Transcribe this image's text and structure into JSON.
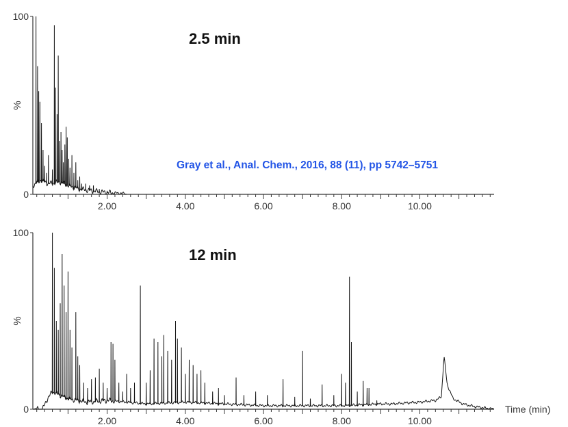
{
  "citation": {
    "text": "Gray et al., Anal. Chem., 2016, 88 (11), pp 5742–5751",
    "color": "#2355e6"
  },
  "chart_data": [
    {
      "type": "line",
      "title": "2.5 min",
      "xlabel": "",
      "ylabel": "%",
      "xlim": [
        0.1,
        11.9
      ],
      "ylim": [
        0,
        100
      ],
      "x_ticks": [
        "2.00",
        "4.00",
        "6.00",
        "8.00",
        "10.00"
      ],
      "y_ticks": [
        "0",
        "100"
      ],
      "baseline": [
        [
          0.1,
          5
        ],
        [
          0.3,
          8
        ],
        [
          0.5,
          6
        ],
        [
          0.8,
          7
        ],
        [
          1.0,
          5
        ],
        [
          1.3,
          3
        ],
        [
          1.6,
          2
        ],
        [
          2.0,
          1
        ],
        [
          2.45,
          0.5
        ],
        [
          2.5,
          0
        ]
      ],
      "peaks": [
        [
          0.18,
          100
        ],
        [
          0.22,
          72
        ],
        [
          0.25,
          58
        ],
        [
          0.28,
          52
        ],
        [
          0.32,
          40
        ],
        [
          0.36,
          25
        ],
        [
          0.4,
          16
        ],
        [
          0.45,
          12
        ],
        [
          0.5,
          22
        ],
        [
          0.6,
          14
        ],
        [
          0.65,
          95
        ],
        [
          0.68,
          60
        ],
        [
          0.72,
          45
        ],
        [
          0.75,
          78
        ],
        [
          0.78,
          30
        ],
        [
          0.82,
          35
        ],
        [
          0.85,
          25
        ],
        [
          0.88,
          18
        ],
        [
          0.92,
          28
        ],
        [
          0.95,
          38
        ],
        [
          0.98,
          32
        ],
        [
          1.02,
          20
        ],
        [
          1.05,
          15
        ],
        [
          1.1,
          22
        ],
        [
          1.15,
          12
        ],
        [
          1.2,
          18
        ],
        [
          1.25,
          8
        ],
        [
          1.3,
          10
        ],
        [
          1.35,
          6
        ],
        [
          1.45,
          6
        ],
        [
          1.55,
          5
        ],
        [
          1.65,
          5
        ],
        [
          1.8,
          3
        ],
        [
          2.0,
          2
        ]
      ]
    },
    {
      "type": "line",
      "title": "12 min",
      "xlabel": "Time (min)",
      "ylabel": "%",
      "xlim": [
        0.1,
        11.9
      ],
      "ylim": [
        0,
        100
      ],
      "x_ticks": [
        "2.00",
        "4.00",
        "6.00",
        "8.00",
        "10.00"
      ],
      "y_ticks": [
        "0",
        "100"
      ],
      "baseline": [
        [
          0.1,
          0
        ],
        [
          0.35,
          0
        ],
        [
          0.45,
          5
        ],
        [
          0.6,
          10
        ],
        [
          0.8,
          8
        ],
        [
          1.0,
          6
        ],
        [
          1.5,
          4
        ],
        [
          2.0,
          5
        ],
        [
          3.0,
          3
        ],
        [
          4.0,
          4
        ],
        [
          5.0,
          3
        ],
        [
          6.0,
          2
        ],
        [
          7.0,
          2
        ],
        [
          8.0,
          2
        ],
        [
          9.0,
          3
        ],
        [
          9.3,
          3
        ],
        [
          9.6,
          3.5
        ],
        [
          10.0,
          4
        ],
        [
          10.4,
          5
        ],
        [
          10.55,
          7
        ],
        [
          10.62,
          30
        ],
        [
          10.7,
          14
        ],
        [
          10.85,
          6
        ],
        [
          11.1,
          3
        ],
        [
          11.4,
          1.5
        ],
        [
          11.9,
          0
        ]
      ],
      "peaks": [
        [
          0.6,
          100
        ],
        [
          0.65,
          80
        ],
        [
          0.7,
          50
        ],
        [
          0.75,
          45
        ],
        [
          0.8,
          60
        ],
        [
          0.85,
          88
        ],
        [
          0.9,
          70
        ],
        [
          0.95,
          55
        ],
        [
          1.0,
          78
        ],
        [
          1.05,
          45
        ],
        [
          1.1,
          35
        ],
        [
          1.2,
          55
        ],
        [
          1.25,
          30
        ],
        [
          1.3,
          25
        ],
        [
          1.4,
          15
        ],
        [
          1.5,
          12
        ],
        [
          1.6,
          17
        ],
        [
          1.7,
          18
        ],
        [
          1.8,
          23
        ],
        [
          1.9,
          15
        ],
        [
          2.0,
          12
        ],
        [
          2.1,
          38
        ],
        [
          2.15,
          37
        ],
        [
          2.2,
          28
        ],
        [
          2.3,
          15
        ],
        [
          2.4,
          10
        ],
        [
          2.5,
          20
        ],
        [
          2.6,
          12
        ],
        [
          2.7,
          15
        ],
        [
          2.85,
          70
        ],
        [
          3.0,
          15
        ],
        [
          3.1,
          22
        ],
        [
          3.2,
          40
        ],
        [
          3.3,
          38
        ],
        [
          3.4,
          30
        ],
        [
          3.45,
          42
        ],
        [
          3.55,
          33
        ],
        [
          3.65,
          28
        ],
        [
          3.75,
          50
        ],
        [
          3.8,
          40
        ],
        [
          3.9,
          35
        ],
        [
          4.0,
          20
        ],
        [
          4.1,
          28
        ],
        [
          4.2,
          25
        ],
        [
          4.3,
          20
        ],
        [
          4.4,
          22
        ],
        [
          4.5,
          15
        ],
        [
          4.7,
          10
        ],
        [
          4.85,
          12
        ],
        [
          5.0,
          8
        ],
        [
          5.3,
          18
        ],
        [
          5.5,
          8
        ],
        [
          5.8,
          10
        ],
        [
          6.1,
          8
        ],
        [
          6.5,
          17
        ],
        [
          6.8,
          7
        ],
        [
          7.0,
          33
        ],
        [
          7.2,
          6
        ],
        [
          7.5,
          14
        ],
        [
          7.8,
          8
        ],
        [
          8.0,
          20
        ],
        [
          8.1,
          15
        ],
        [
          8.2,
          75
        ],
        [
          8.25,
          38
        ],
        [
          8.4,
          10
        ],
        [
          8.55,
          16
        ],
        [
          8.65,
          12
        ],
        [
          8.7,
          12
        ],
        [
          8.9,
          5
        ]
      ]
    }
  ]
}
